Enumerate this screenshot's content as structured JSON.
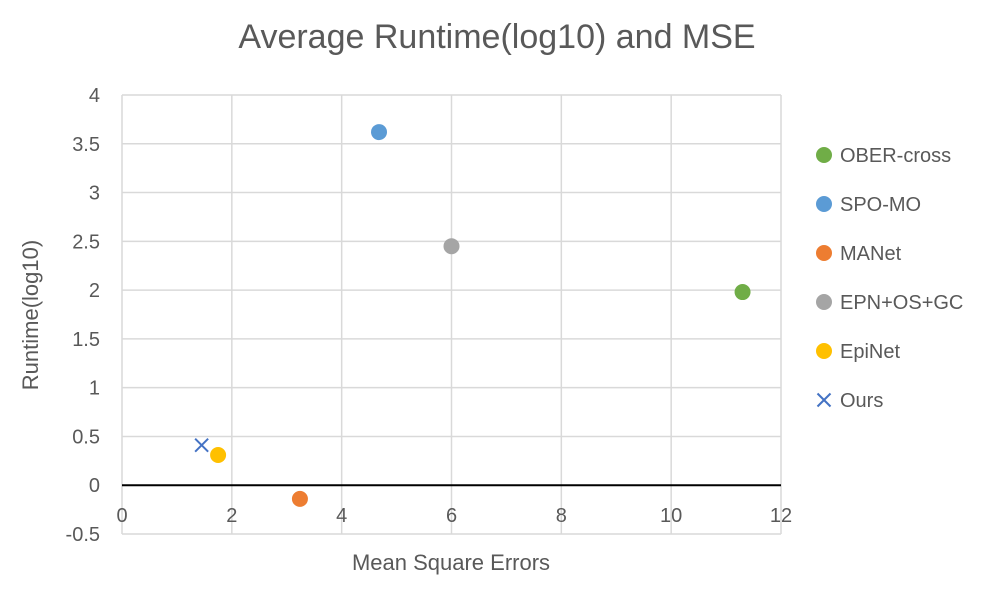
{
  "chart_data": {
    "type": "scatter",
    "title": "Average Runtime(log10) and MSE",
    "xlabel": "Mean Square Errors",
    "ylabel": "Runtime(log10)",
    "xlim": [
      0,
      12
    ],
    "ylim": [
      -0.5,
      4
    ],
    "x_ticks": [
      "0",
      "2",
      "4",
      "6",
      "8",
      "10",
      "12"
    ],
    "y_ticks": [
      "-0.5",
      "0",
      "0.5",
      "1",
      "1.5",
      "2",
      "2.5",
      "3",
      "3.5",
      "4"
    ],
    "grid": true,
    "legend_position": "right",
    "series": [
      {
        "name": "OBER-cross",
        "color": "#70ad47",
        "marker": "circle",
        "points": [
          {
            "x": 11.3,
            "y": 1.98
          }
        ]
      },
      {
        "name": "SPO-MO",
        "color": "#5b9bd5",
        "marker": "circle",
        "points": [
          {
            "x": 4.68,
            "y": 3.62
          }
        ]
      },
      {
        "name": "MANet",
        "color": "#ed7d31",
        "marker": "circle",
        "points": [
          {
            "x": 3.24,
            "y": -0.14
          }
        ]
      },
      {
        "name": "EPN+OS+GC",
        "color": "#a5a5a5",
        "marker": "circle",
        "points": [
          {
            "x": 6.0,
            "y": 2.45
          }
        ]
      },
      {
        "name": "EpiNet",
        "color": "#ffc000",
        "marker": "circle",
        "points": [
          {
            "x": 1.75,
            "y": 0.31
          }
        ]
      },
      {
        "name": "Ours",
        "color": "#4472c4",
        "marker": "x",
        "points": [
          {
            "x": 1.45,
            "y": 0.41
          }
        ]
      }
    ]
  }
}
